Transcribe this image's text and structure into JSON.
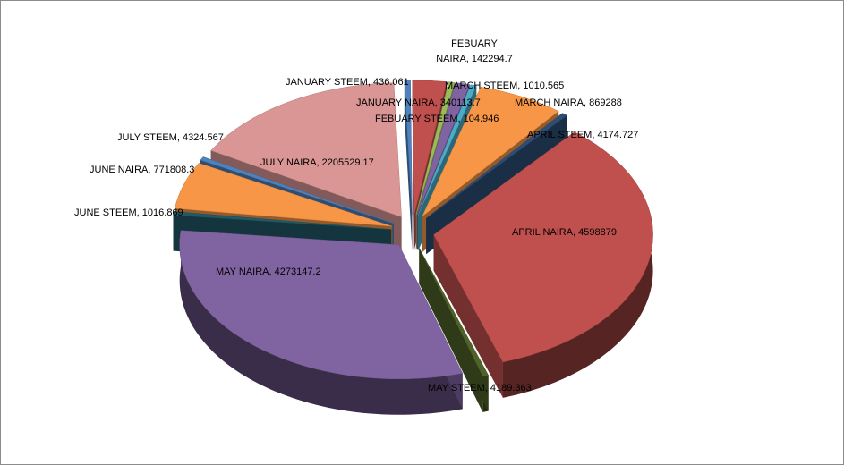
{
  "chart_data": {
    "type": "pie",
    "title": "",
    "style": "3d-exploded",
    "slices": [
      {
        "label": "JANUARY STEEM",
        "value": 436.061,
        "color": "#4F81BD",
        "text": "JANUARY STEEM, 436.061"
      },
      {
        "label": "JANUARY NAIRA",
        "value": 340113.7,
        "color": "#C0504D",
        "text": "JANUARY NAIRA, 340113.7"
      },
      {
        "label": "FEBUARY STEEM",
        "value": 104.946,
        "color": "#9BBB59",
        "text": "FEBUARY STEEM, 104.946"
      },
      {
        "label": "FEBUARY NAIRA",
        "value": 142294.7,
        "color": "#8064A2",
        "text_lines": [
          "FEBUARY",
          "NAIRA, 142294.7"
        ]
      },
      {
        "label": "MARCH STEEM",
        "value": 1010.565,
        "color": "#4BACC6",
        "text": "MARCH STEEM, 1010.565"
      },
      {
        "label": "MARCH NAIRA",
        "value": 869288,
        "color": "#F79646",
        "text": "MARCH NAIRA, 869288"
      },
      {
        "label": "APRIL STEEM",
        "value": 4174.727,
        "color": "#2C4D75",
        "text": "APRIL STEEM, 4174.727"
      },
      {
        "label": "APRIL NAIRA",
        "value": 4598879,
        "color": "#C0504D",
        "text": "APRIL NAIRA, 4598879"
      },
      {
        "label": "MAY STEEM",
        "value": 4189.363,
        "color": "#4F6228",
        "text": "MAY STEEM, 4189.363"
      },
      {
        "label": "MAY NAIRA",
        "value": 4273147.2,
        "color": "#8064A2",
        "text": "MAY NAIRA, 4273147.2"
      },
      {
        "label": "JUNE STEEM",
        "value": 1016.869,
        "color": "#215967",
        "text": "JUNE STEEM, 1016.869"
      },
      {
        "label": "JUNE NAIRA",
        "value": 771808.3,
        "color": "#F79646",
        "text": "JUNE NAIRA, 771808.3"
      },
      {
        "label": "JULY STEEM",
        "value": 4324.567,
        "color": "#4F81BD",
        "text": "JULY STEEM, 4324.567"
      },
      {
        "label": "JULY NAIRA",
        "value": 2205529.17,
        "color": "#D99694",
        "text": "JULY NAIRA, 2205529.17"
      }
    ]
  }
}
